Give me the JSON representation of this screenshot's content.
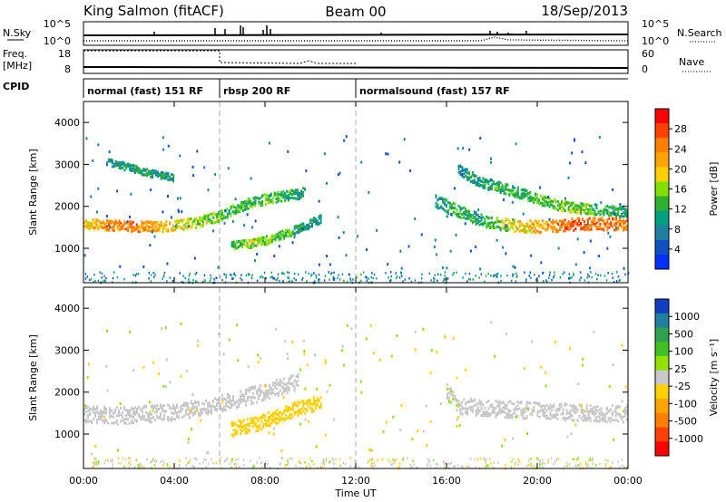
{
  "header": {
    "station": "King Salmon (fitACF)",
    "beam": "Beam 00",
    "date": "18/Sep/2013"
  },
  "top_panels": {
    "nsky_label": "N.Sky",
    "nsearch_label": "N.Search",
    "freq_label_1": "Freq.",
    "freq_label_2": "[MHz]",
    "nave_label": "Nave",
    "cpid_label": "CPID",
    "left_ticks_count": [
      "10^5",
      "10^0"
    ],
    "right_ticks_count": [
      "10^5",
      "10^0"
    ],
    "left_ticks_freq": [
      "18",
      "8"
    ],
    "right_ticks_nave": [
      "60",
      "0"
    ]
  },
  "modes": [
    {
      "label": "normal (fast) 151 RF",
      "start_hour": 0,
      "end_hour": 6
    },
    {
      "label": "rbsp 200 RF",
      "start_hour": 6,
      "end_hour": 12
    },
    {
      "label": "normalsound (fast) 157 RF",
      "start_hour": 12,
      "end_hour": 24
    }
  ],
  "axes": {
    "xlabel": "Time UT",
    "x_ticks": [
      "00:00",
      "04:00",
      "08:00",
      "12:00",
      "16:00",
      "20:00",
      "00:00"
    ],
    "ylabel": "Slant Range [km]",
    "y_ticks": [
      "1000",
      "2000",
      "3000",
      "4000"
    ]
  },
  "power_colorbar": {
    "label": "Power [dB]",
    "ticks": [
      "28",
      "24",
      "20",
      "16",
      "12",
      "8",
      "4"
    ],
    "colors": [
      "#ff0000",
      "#ff4000",
      "#ff8000",
      "#ffa500",
      "#ffd000",
      "#80e000",
      "#30b030",
      "#00a080",
      "#2080a0",
      "#1050c0",
      "#0030ff"
    ]
  },
  "velocity_colorbar": {
    "label": "Velocity [m s⁻¹]",
    "ticks": [
      "1000",
      "500",
      "100",
      "25",
      "-25",
      "-100",
      "-500",
      "-1000"
    ],
    "colors": [
      "#1040c0",
      "#2080a0",
      "#30a050",
      "#40c020",
      "#90e000",
      "#c8c8c8",
      "#ffd000",
      "#ffa500",
      "#ff8000",
      "#ff4000",
      "#ff0000"
    ]
  },
  "chart_data": {
    "type": "heatmap",
    "title": "King Salmon (fitACF)  Beam 00  18/Sep/2013",
    "xlabel": "Time UT",
    "ylabel": "Slant Range [km]",
    "xlim": [
      0,
      24
    ],
    "ylim": [
      180,
      4500
    ],
    "grid": false,
    "power_colorbar_range_db": [
      0,
      32
    ],
    "velocity_colorbar_range_ms": [
      -1000,
      1000
    ],
    "scatter_bands": [
      {
        "panel": "power",
        "name": "main band",
        "points": [
          [
            0,
            1600,
            20
          ],
          [
            1,
            1580,
            24
          ],
          [
            2,
            1550,
            26
          ],
          [
            3,
            1540,
            22
          ],
          [
            4,
            1570,
            20
          ],
          [
            5,
            1650,
            16
          ],
          [
            6,
            1800,
            14
          ],
          [
            7,
            2050,
            12
          ],
          [
            8,
            2200,
            14
          ],
          [
            9,
            2300,
            12
          ],
          [
            9.8,
            2350,
            8
          ]
        ],
        "width_km": 250
      },
      {
        "panel": "power",
        "name": "upper band",
        "points": [
          [
            1,
            3100,
            8
          ],
          [
            2,
            2950,
            10
          ],
          [
            3,
            2800,
            10
          ],
          [
            4,
            2700,
            8
          ]
        ],
        "width_km": 180
      },
      {
        "panel": "power",
        "name": "lower band",
        "points": [
          [
            6.5,
            1100,
            12
          ],
          [
            7.5,
            1150,
            16
          ],
          [
            8.5,
            1300,
            14
          ],
          [
            9.5,
            1500,
            10
          ],
          [
            10.5,
            1750,
            8
          ]
        ],
        "width_km": 200
      },
      {
        "panel": "power",
        "name": "afternoon band",
        "points": [
          [
            15.5,
            2150,
            8
          ],
          [
            16.5,
            1900,
            12
          ],
          [
            17.5,
            1700,
            10
          ],
          [
            18.5,
            1600,
            16
          ],
          [
            19.5,
            1550,
            20
          ],
          [
            20.5,
            1550,
            24
          ],
          [
            21.5,
            1600,
            28
          ],
          [
            22.5,
            1620,
            26
          ],
          [
            24,
            1600,
            26
          ]
        ],
        "width_km": 300
      },
      {
        "panel": "power",
        "name": "afternoon upper",
        "points": [
          [
            16.5,
            2900,
            8
          ],
          [
            17.5,
            2600,
            10
          ],
          [
            18.5,
            2450,
            12
          ],
          [
            19.5,
            2300,
            12
          ],
          [
            20.5,
            2100,
            14
          ],
          [
            21.5,
            2000,
            16
          ],
          [
            22.5,
            1950,
            12
          ],
          [
            24,
            1900,
            10
          ]
        ],
        "width_km": 250
      },
      {
        "panel": "velocity",
        "name": "ground scatter main",
        "points": [
          [
            0,
            1500,
            0
          ],
          [
            2,
            1480,
            0
          ],
          [
            4,
            1550,
            0
          ],
          [
            6,
            1750,
            0
          ],
          [
            8,
            2050,
            0
          ],
          [
            9.5,
            2300,
            0
          ]
        ],
        "width_km": 400
      },
      {
        "panel": "velocity",
        "name": "lower band",
        "points": [
          [
            6.5,
            1150,
            -150
          ],
          [
            7.5,
            1250,
            -150
          ],
          [
            8.5,
            1450,
            -150
          ],
          [
            9.5,
            1650,
            -150
          ],
          [
            10.5,
            1800,
            -150
          ]
        ],
        "width_km": 350
      },
      {
        "panel": "velocity",
        "name": "afternoon",
        "points": [
          [
            16,
            2050,
            80
          ],
          [
            16.5,
            1700,
            80
          ],
          [
            17.5,
            1650,
            0
          ],
          [
            19.5,
            1600,
            0
          ],
          [
            21.5,
            1550,
            0
          ],
          [
            24,
            1500,
            0
          ]
        ],
        "width_km": 400
      }
    ]
  }
}
